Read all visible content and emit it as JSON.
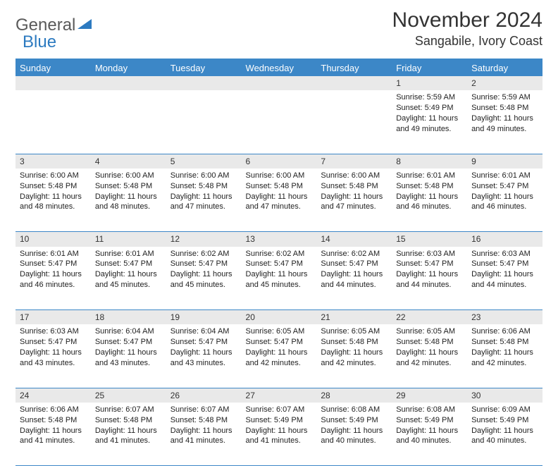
{
  "logo": {
    "word1": "General",
    "word2": "Blue"
  },
  "title": "November 2024",
  "location": "Sangabile, Ivory Coast",
  "header_bg": "#3c87c7",
  "daynum_bg": "#e9e9e9",
  "border_color": "#3c87c7",
  "days_of_week": [
    "Sunday",
    "Monday",
    "Tuesday",
    "Wednesday",
    "Thursday",
    "Friday",
    "Saturday"
  ],
  "weeks": [
    [
      null,
      null,
      null,
      null,
      null,
      {
        "n": "1",
        "sunrise": "Sunrise: 5:59 AM",
        "sunset": "Sunset: 5:49 PM",
        "day1": "Daylight: 11 hours",
        "day2": "and 49 minutes."
      },
      {
        "n": "2",
        "sunrise": "Sunrise: 5:59 AM",
        "sunset": "Sunset: 5:48 PM",
        "day1": "Daylight: 11 hours",
        "day2": "and 49 minutes."
      }
    ],
    [
      {
        "n": "3",
        "sunrise": "Sunrise: 6:00 AM",
        "sunset": "Sunset: 5:48 PM",
        "day1": "Daylight: 11 hours",
        "day2": "and 48 minutes."
      },
      {
        "n": "4",
        "sunrise": "Sunrise: 6:00 AM",
        "sunset": "Sunset: 5:48 PM",
        "day1": "Daylight: 11 hours",
        "day2": "and 48 minutes."
      },
      {
        "n": "5",
        "sunrise": "Sunrise: 6:00 AM",
        "sunset": "Sunset: 5:48 PM",
        "day1": "Daylight: 11 hours",
        "day2": "and 47 minutes."
      },
      {
        "n": "6",
        "sunrise": "Sunrise: 6:00 AM",
        "sunset": "Sunset: 5:48 PM",
        "day1": "Daylight: 11 hours",
        "day2": "and 47 minutes."
      },
      {
        "n": "7",
        "sunrise": "Sunrise: 6:00 AM",
        "sunset": "Sunset: 5:48 PM",
        "day1": "Daylight: 11 hours",
        "day2": "and 47 minutes."
      },
      {
        "n": "8",
        "sunrise": "Sunrise: 6:01 AM",
        "sunset": "Sunset: 5:48 PM",
        "day1": "Daylight: 11 hours",
        "day2": "and 46 minutes."
      },
      {
        "n": "9",
        "sunrise": "Sunrise: 6:01 AM",
        "sunset": "Sunset: 5:47 PM",
        "day1": "Daylight: 11 hours",
        "day2": "and 46 minutes."
      }
    ],
    [
      {
        "n": "10",
        "sunrise": "Sunrise: 6:01 AM",
        "sunset": "Sunset: 5:47 PM",
        "day1": "Daylight: 11 hours",
        "day2": "and 46 minutes."
      },
      {
        "n": "11",
        "sunrise": "Sunrise: 6:01 AM",
        "sunset": "Sunset: 5:47 PM",
        "day1": "Daylight: 11 hours",
        "day2": "and 45 minutes."
      },
      {
        "n": "12",
        "sunrise": "Sunrise: 6:02 AM",
        "sunset": "Sunset: 5:47 PM",
        "day1": "Daylight: 11 hours",
        "day2": "and 45 minutes."
      },
      {
        "n": "13",
        "sunrise": "Sunrise: 6:02 AM",
        "sunset": "Sunset: 5:47 PM",
        "day1": "Daylight: 11 hours",
        "day2": "and 45 minutes."
      },
      {
        "n": "14",
        "sunrise": "Sunrise: 6:02 AM",
        "sunset": "Sunset: 5:47 PM",
        "day1": "Daylight: 11 hours",
        "day2": "and 44 minutes."
      },
      {
        "n": "15",
        "sunrise": "Sunrise: 6:03 AM",
        "sunset": "Sunset: 5:47 PM",
        "day1": "Daylight: 11 hours",
        "day2": "and 44 minutes."
      },
      {
        "n": "16",
        "sunrise": "Sunrise: 6:03 AM",
        "sunset": "Sunset: 5:47 PM",
        "day1": "Daylight: 11 hours",
        "day2": "and 44 minutes."
      }
    ],
    [
      {
        "n": "17",
        "sunrise": "Sunrise: 6:03 AM",
        "sunset": "Sunset: 5:47 PM",
        "day1": "Daylight: 11 hours",
        "day2": "and 43 minutes."
      },
      {
        "n": "18",
        "sunrise": "Sunrise: 6:04 AM",
        "sunset": "Sunset: 5:47 PM",
        "day1": "Daylight: 11 hours",
        "day2": "and 43 minutes."
      },
      {
        "n": "19",
        "sunrise": "Sunrise: 6:04 AM",
        "sunset": "Sunset: 5:47 PM",
        "day1": "Daylight: 11 hours",
        "day2": "and 43 minutes."
      },
      {
        "n": "20",
        "sunrise": "Sunrise: 6:05 AM",
        "sunset": "Sunset: 5:47 PM",
        "day1": "Daylight: 11 hours",
        "day2": "and 42 minutes."
      },
      {
        "n": "21",
        "sunrise": "Sunrise: 6:05 AM",
        "sunset": "Sunset: 5:48 PM",
        "day1": "Daylight: 11 hours",
        "day2": "and 42 minutes."
      },
      {
        "n": "22",
        "sunrise": "Sunrise: 6:05 AM",
        "sunset": "Sunset: 5:48 PM",
        "day1": "Daylight: 11 hours",
        "day2": "and 42 minutes."
      },
      {
        "n": "23",
        "sunrise": "Sunrise: 6:06 AM",
        "sunset": "Sunset: 5:48 PM",
        "day1": "Daylight: 11 hours",
        "day2": "and 42 minutes."
      }
    ],
    [
      {
        "n": "24",
        "sunrise": "Sunrise: 6:06 AM",
        "sunset": "Sunset: 5:48 PM",
        "day1": "Daylight: 11 hours",
        "day2": "and 41 minutes."
      },
      {
        "n": "25",
        "sunrise": "Sunrise: 6:07 AM",
        "sunset": "Sunset: 5:48 PM",
        "day1": "Daylight: 11 hours",
        "day2": "and 41 minutes."
      },
      {
        "n": "26",
        "sunrise": "Sunrise: 6:07 AM",
        "sunset": "Sunset: 5:48 PM",
        "day1": "Daylight: 11 hours",
        "day2": "and 41 minutes."
      },
      {
        "n": "27",
        "sunrise": "Sunrise: 6:07 AM",
        "sunset": "Sunset: 5:49 PM",
        "day1": "Daylight: 11 hours",
        "day2": "and 41 minutes."
      },
      {
        "n": "28",
        "sunrise": "Sunrise: 6:08 AM",
        "sunset": "Sunset: 5:49 PM",
        "day1": "Daylight: 11 hours",
        "day2": "and 40 minutes."
      },
      {
        "n": "29",
        "sunrise": "Sunrise: 6:08 AM",
        "sunset": "Sunset: 5:49 PM",
        "day1": "Daylight: 11 hours",
        "day2": "and 40 minutes."
      },
      {
        "n": "30",
        "sunrise": "Sunrise: 6:09 AM",
        "sunset": "Sunset: 5:49 PM",
        "day1": "Daylight: 11 hours",
        "day2": "and 40 minutes."
      }
    ]
  ]
}
